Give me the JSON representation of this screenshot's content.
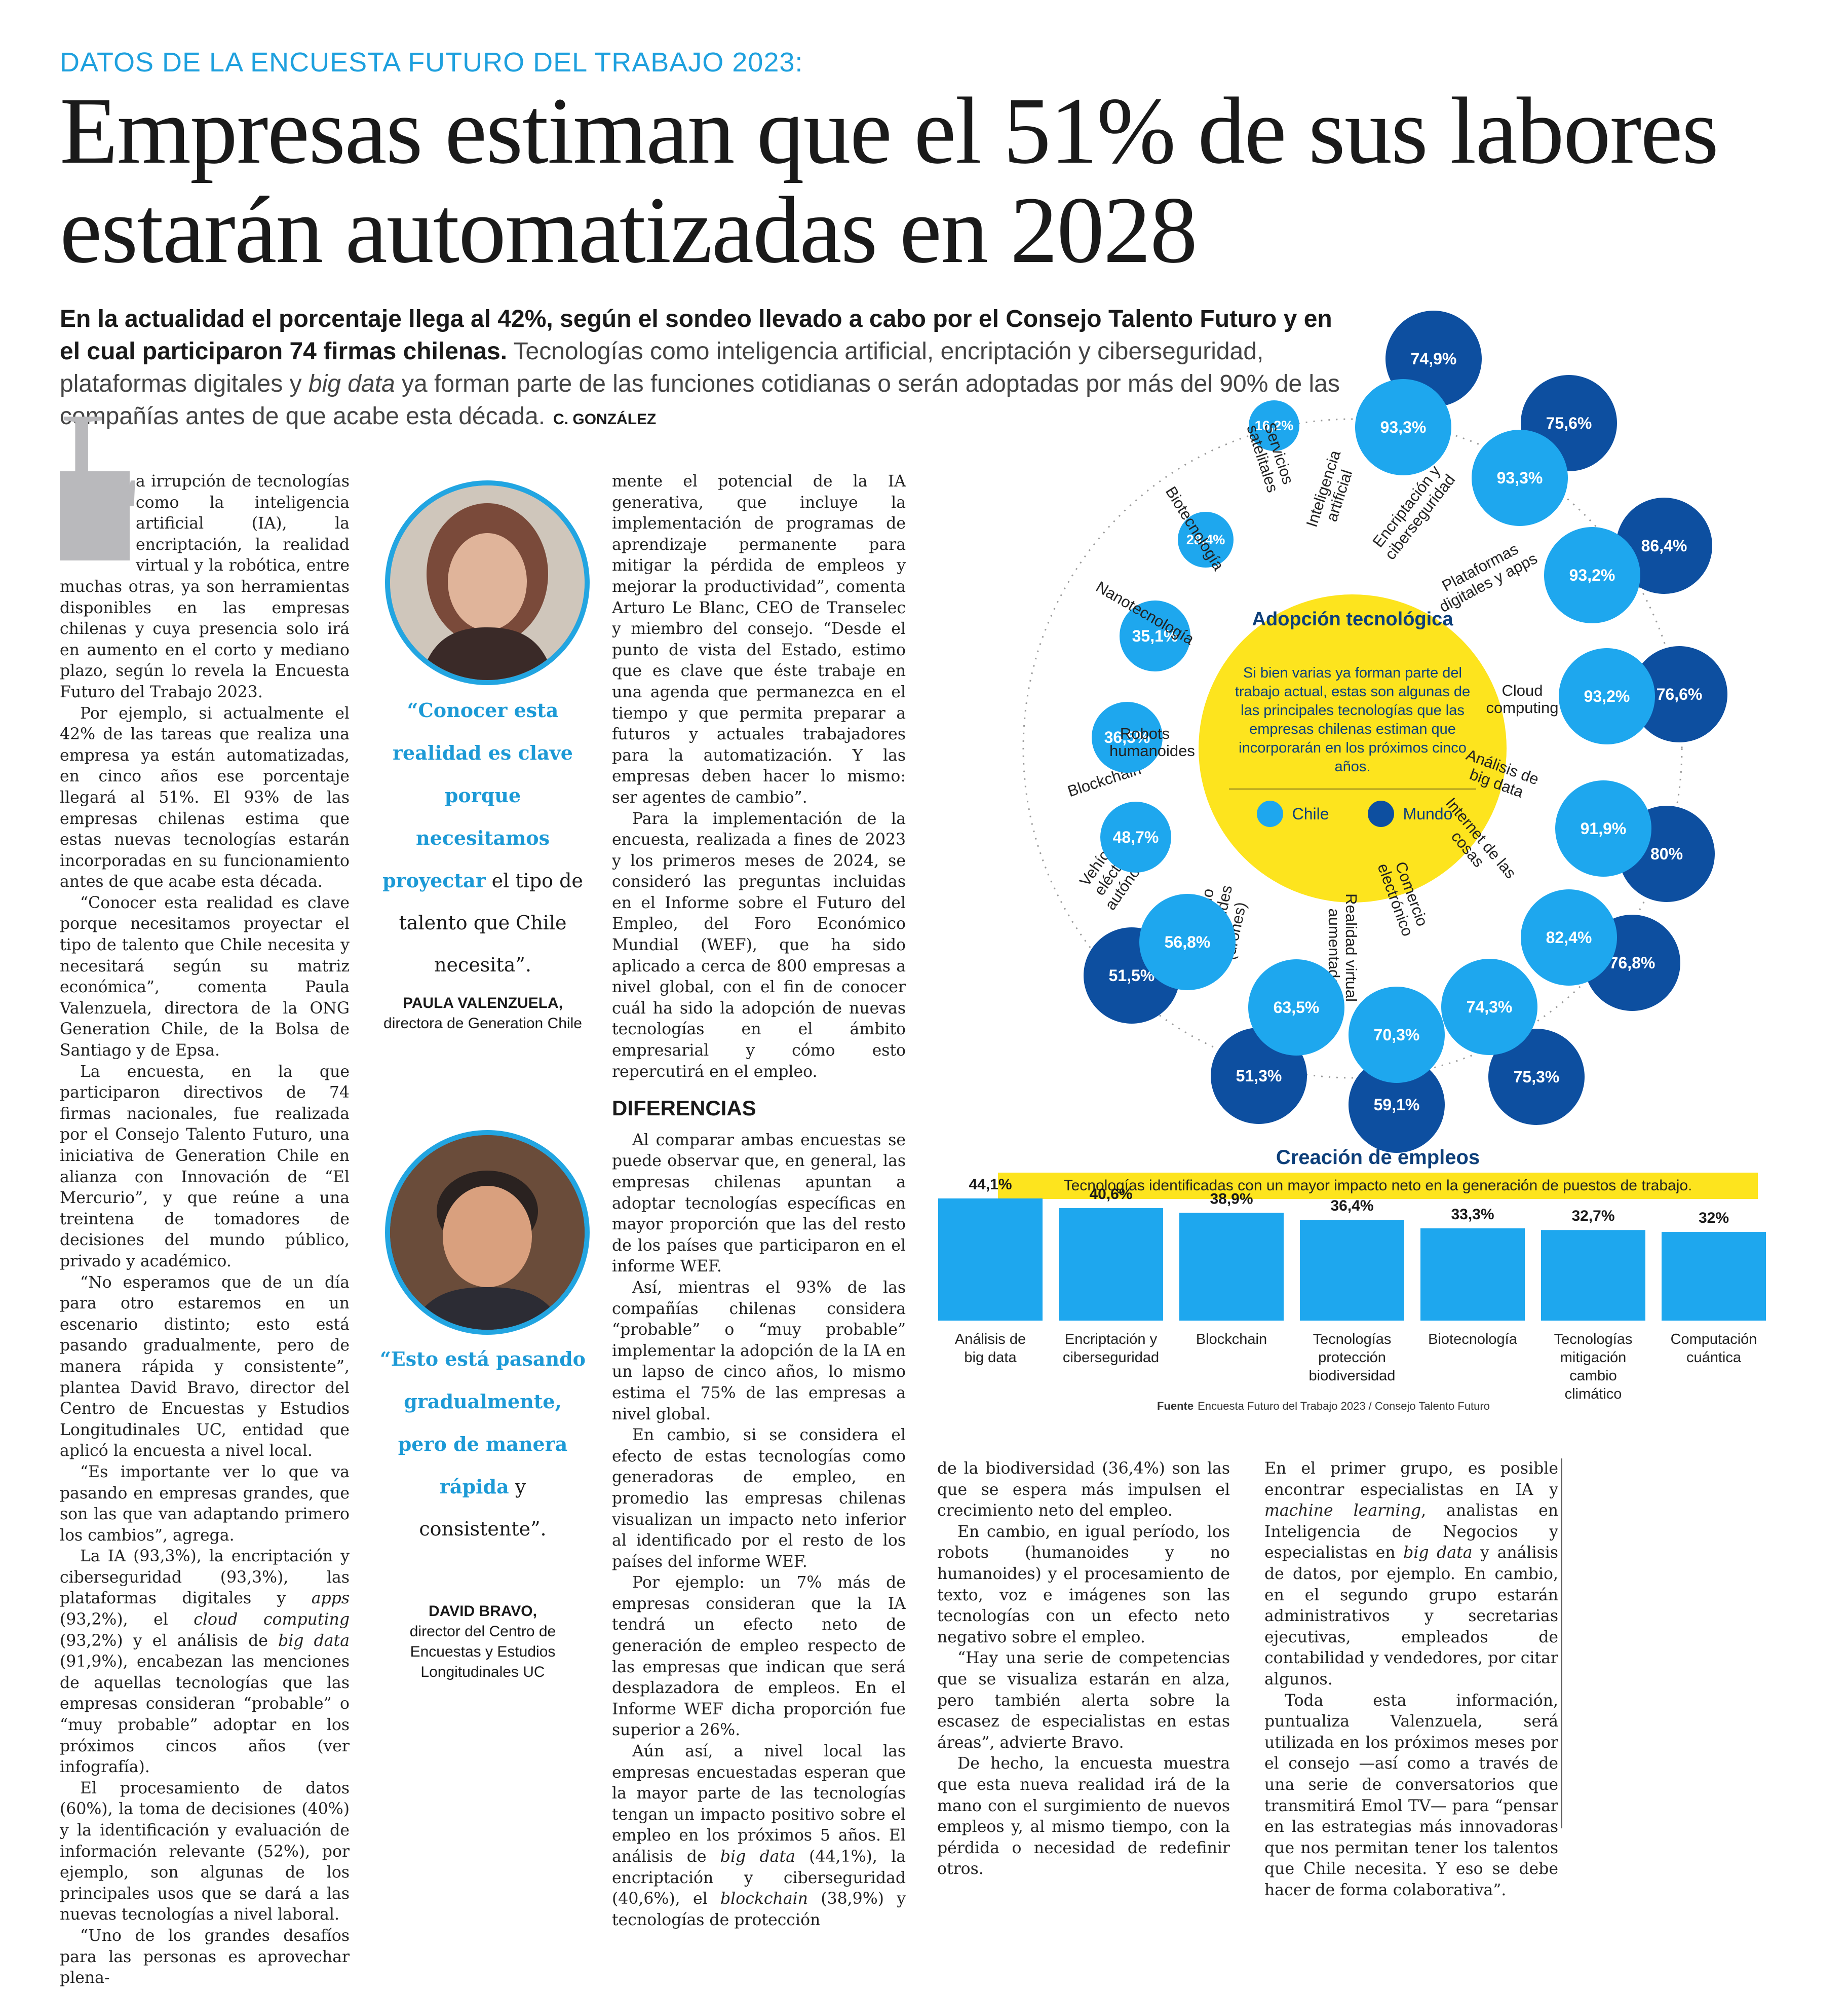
{
  "kicker": "DATOS DE LA ENCUESTA FUTURO DEL TRABAJO 2023:",
  "headline": "Empresas estiman que el 51% de sus labores estarán automatizadas en 2028",
  "lead": {
    "bold": "En la actualidad el porcentaje llega al 42%, según el sondeo llevado a cabo por el Consejo Talento Futuro y en el cual participaron 74 firmas chilenas.",
    "normal_1": " Tecnologías como inteligencia artificial, encriptación y ciberseguridad, plataformas digitales y ",
    "italic": "big data",
    "normal_2": " ya forman parte de las funciones cotidianas o serán adoptadas por más del 90% de las compañías antes de que acabe esta década.",
    "author": "C. GONZÁLEZ"
  },
  "col1": {
    "dropcap": "L",
    "p1": "a irrupción de tecnologías como la inteligencia artificial (IA), la encriptación, la realidad virtual y la robótica, entre muchas otras, ya son herramientas disponibles en las empresas chilenas y cuya presencia solo irá en aumento en el corto y mediano plazo, según lo revela la Encuesta Futuro del Trabajo 2023.",
    "p2": "Por ejemplo, si actualmente el 42% de las tareas que realiza una empresa ya están automatizadas, en cinco años ese porcentaje llegará al 51%. El 93% de las empresas chilenas estima que estas nuevas tecnologías estarán incorporadas en su funcionamiento antes de que acabe esta década.",
    "p3": "“Conocer esta realidad es clave porque necesitamos proyectar el tipo de talento que Chile necesita y necesitará según su matriz económica”, comenta Paula Valenzuela, directora de la ONG Generation Chile, de la Bolsa de Santiago y de Epsa.",
    "p4": "La encuesta, en la que participaron directivos de 74 firmas nacionales, fue realizada por el Consejo Talento Futuro, una iniciativa de Generation Chile en alianza con Innovación de “El Mercurio”, y que reúne a una treintena de tomadores de decisiones del mundo público, privado y académico.",
    "p5": "“No esperamos que de un día para otro estaremos en un escenario distinto; esto está pasando gradualmente, pero de manera rápida y consistente”, plantea David Bravo, director del Centro de Encuestas y Estudios Longitudinales UC, entidad que aplicó la encuesta a nivel local.",
    "p6": "“Es importante ver lo que va pasando en empresas grandes, que son las que van adaptando primero los cambios”, agrega.",
    "p7a": "La IA (93,3%), la encriptación y ciberseguridad (93,3%), las plataformas digitales y ",
    "p7b": "apps",
    "p7c": " (93,2%), el ",
    "p7d": "cloud computing",
    "p7e": " (93,2%) y el análisis de ",
    "p7f": "big data",
    "p7g": " (91,9%), encabezan las menciones de aquellas tecnologías que las empresas consideran “probable” o “muy probable” adoptar en los próximos cincos años (ver infografía).",
    "p8": "El procesamiento de datos (60%), la toma de decisiones (40%) y la identificación y evaluación de información relevante (52%), por ejemplo, son algunas de los principales usos que se dará a las nuevas tecnologías a nivel laboral.",
    "p9": "“Uno de los grandes desafíos para las personas es aprovechar plena-"
  },
  "quote1": {
    "hl": "“Conocer esta realidad es clave porque necesitamos proyectar",
    "rest": " el tipo de talento que Chile necesita”.",
    "name": "PAULA VALENZUELA,",
    "role": "directora de Generation Chile"
  },
  "quote2": {
    "hl": "“Esto está pasando gradualmente, pero de manera rápida",
    "rest": " y consistente”.",
    "name": "DAVID BRAVO,",
    "role": "director del Centro de Encuestas y Estudios Longitudinales UC"
  },
  "col3": {
    "p1": "mente el potencial de la IA generativa, que incluye la implementación de programas de aprendizaje permanente para mitigar la pérdida de empleos y mejorar la productividad”, comenta Arturo Le Blanc, CEO de Transelec y miembro del consejo. “Desde el punto de vista del Estado, estimo que es clave que éste trabaje en una agenda que permanezca en el tiempo y que permita preparar a futuros y actuales trabajadores para la automatización. Y las empresas deben hacer lo mismo: ser agentes de cambio”.",
    "p2": "Para la implementación de la encuesta, realizada a fines de 2023 y los primeros meses de 2024, se consideró las preguntas incluidas en el Informe sobre el Futuro del Empleo, del Foro Económico Mundial (WEF), que ha sido aplicado a cerca de 800 empresas a nivel global, con el fin de conocer cuál ha sido la adopción de nuevas tecnologías en el ámbito empresarial y cómo esto repercutirá en el empleo.",
    "heading": "DIFERENCIAS",
    "p3": "Al comparar ambas encuestas se puede observar que, en general, las empresas chilenas apuntan a adoptar tecnologías específicas en mayor proporción que las del resto de los países que participaron en el informe WEF.",
    "p4": "Así, mientras el 93% de las compañías chilenas considera “probable” o “muy probable” implementar la adopción de la IA en un lapso de cinco años, lo mismo estima el 75% de las empresas a nivel global.",
    "p5": "En cambio, si se considera el efecto de estas tecnologías como generadoras de empleo, en promedio las empresas chilenas visualizan un impacto neto inferior al identificado por el resto de los países del informe WEF.",
    "p6": "Por ejemplo: un 7% más de empresas consideran que la IA tendrá un efecto neto de generación de empleo respecto de las empresas que indican que será desplazadora de empleos. En el Informe WEF dicha proporción fue superior a 26%.",
    "p7a": "Aún así, a nivel local las empresas encuestadas esperan que la mayor parte de las tecnologías tengan un impacto positivo sobre el empleo en los próximos 5 años. El análisis de ",
    "p7b": "big data",
    "p7c": " (44,1%), la encriptación y ciberseguridad (40,6%), el ",
    "p7d": "blockchain",
    "p7e": " (38,9%) y tecnologías de protección"
  },
  "col4": {
    "p1": "de la biodiversidad (36,4%) son las que se espera más impulsen el crecimiento neto del empleo.",
    "p2": "En cambio, en igual período, los robots (humanoides y no humanoides) y el procesamiento de texto, voz e imágenes son las tecnologías con un efecto neto negativo sobre el empleo.",
    "p3": "“Hay una serie de competencias que se visualiza estarán en alza, pero también alerta sobre la escasez de especialistas en estas áreas”, advierte Bravo.",
    "p4": "De hecho, la encuesta muestra que esta nueva realidad irá de la mano con el surgimiento de nuevos empleos y, al mismo tiempo, con la pérdida o necesidad de redefinir otros."
  },
  "col5": {
    "p1a": "En el primer grupo, es posible encontrar especialistas en IA y ",
    "p1b": "machine learning",
    "p1c": ", analistas en Inteligencia de Negocios y especialistas en ",
    "p1d": "big data",
    "p1e": " y análisis de datos, por ejemplo. En cambio, en el segundo grupo estarán administrativos y secretarias ejecutivas, empleados de contabilidad y vendedores, por citar algunos.",
    "p2": "Toda esta información, puntualiza Valenzuela, será utilizada en los próximos meses por el consejo —así como a través de una serie de conversatorios que transmitirá Emol TV— para “pensar en las estrategias más innovadoras que nos permitan tener los talentos que Chile necesita. Y eso se debe hacer de forma colaborativa”."
  },
  "infographic": {
    "center_title": "Adopción tecnológica",
    "center_text": "Si bien varias ya forman parte del trabajo actual, estas son algunas de las principales tecnologías que las empresas chilenas estiman que incorporarán en los próximos cinco años.",
    "legend_chile": "Chile",
    "legend_mundo": "Mundo",
    "color_chile": "#1ea7ee",
    "color_mundo": "#0d4fa0",
    "color_center": "#fde41e",
    "items": [
      {
        "label": "Servicios satelitales",
        "chile": "16,2%",
        "mundo": ""
      },
      {
        "label": "Inteligencia artificial",
        "chile": "93,3%",
        "mundo": "74,9%"
      },
      {
        "label": "Encriptación y ciberseguridad",
        "chile": "93,3%",
        "mundo": "75,6%"
      },
      {
        "label": "Plataformas digitales y apps",
        "chile": "93,2%",
        "mundo": "86,4%"
      },
      {
        "label": "Cloud computing",
        "chile": "93,2%",
        "mundo": "76,6%"
      },
      {
        "label": "Análisis de big data",
        "chile": "91,9%",
        "mundo": "80%"
      },
      {
        "label": "Internet de las cosas",
        "chile": "82,4%",
        "mundo": "76,8%"
      },
      {
        "label": "Comercio electrónico",
        "chile": "74,3%",
        "mundo": "75,3%"
      },
      {
        "label": "Realidad virtual aumentada",
        "chile": "70,3%",
        "mundo": "59,1%"
      },
      {
        "label": "Robots no humanoides (drones)",
        "chile": "63,5%",
        "mundo": "51,3%"
      },
      {
        "label": "Vehículos eléctricos autónomos",
        "chile": "56,8%",
        "mundo": "51,5%"
      },
      {
        "label": "Blockchain",
        "chile": "48,7%",
        "mundo": ""
      },
      {
        "label": "Robots humanoides",
        "chile": "36,5%",
        "mundo": ""
      },
      {
        "label": "Nanotecnología",
        "chile": "35,1%",
        "mundo": ""
      },
      {
        "label": "Biotecnología",
        "chile": "28,4%",
        "mundo": ""
      }
    ]
  },
  "chart_data": {
    "type": "bar",
    "title": "Creación de empleos",
    "subtitle": "Tecnologías identificadas con un mayor impacto neto en la generación de puestos de trabajo.",
    "categories": [
      "Análisis de big data",
      "Encriptación y ciberseguridad",
      "Blockchain",
      "Tecnologías protección biodiversidad",
      "Biotecnología",
      "Tecnologías mitigación cambio climático",
      "Computación cuántica"
    ],
    "values": [
      44.1,
      40.6,
      38.9,
      36.4,
      33.3,
      32.7,
      32
    ],
    "value_labels": [
      "44,1%",
      "40,6%",
      "38,9%",
      "36,4%",
      "33,3%",
      "32,7%",
      "32%"
    ],
    "bar_color": "#1ea7ee",
    "xlabel": "",
    "ylabel": "",
    "ylim": [
      0,
      45
    ]
  },
  "source": {
    "label": "Fuente",
    "text": "Encuesta Futuro del Trabajo 2023 / Consejo Talento Futuro"
  }
}
